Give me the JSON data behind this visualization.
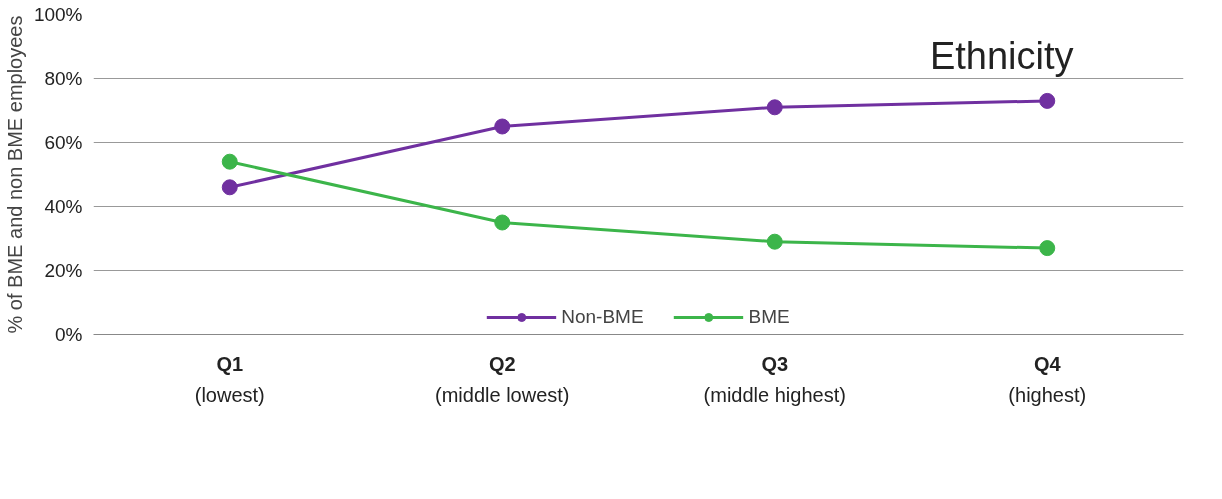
{
  "chart_data": {
    "type": "line",
    "title": "Ethnicity",
    "ylabel": "% of BME and non BME employees",
    "categories": [
      "Q1\n(lowest)",
      "Q2\n(middle lowest)",
      "Q3\n(middle highest)",
      "Q4\n(highest)"
    ],
    "series": [
      {
        "name": "Non-BME",
        "color": "#7030a0",
        "values": [
          46,
          65,
          71,
          73
        ]
      },
      {
        "name": "BME",
        "color": "#3cb54a",
        "values": [
          54,
          35,
          29,
          27
        ]
      }
    ],
    "ylim": [
      0,
      100
    ],
    "yticks": [
      {
        "value": 0,
        "label": "0%"
      },
      {
        "value": 20,
        "label": "20%"
      },
      {
        "value": 40,
        "label": "40%"
      },
      {
        "value": 60,
        "label": "60%"
      },
      {
        "value": 80,
        "label": "80%"
      },
      {
        "value": 100,
        "label": "100%"
      }
    ],
    "grid": "y",
    "legend": "bottom",
    "marker": "circle",
    "line_style": "solid"
  }
}
